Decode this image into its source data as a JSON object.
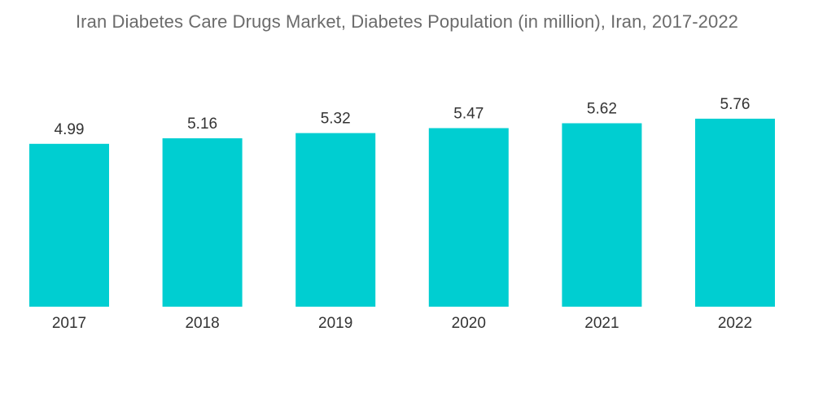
{
  "chart_data": {
    "type": "bar",
    "title": "Iran Diabetes Care Drugs Market, Diabetes Population (in million), Iran, 2017-2022",
    "categories": [
      "2017",
      "2018",
      "2019",
      "2020",
      "2021",
      "2022"
    ],
    "values": [
      4.99,
      5.16,
      5.32,
      5.47,
      5.62,
      5.76
    ],
    "data_labels": [
      "4.99",
      "5.16",
      "5.32",
      "5.47",
      "5.62",
      "5.76"
    ],
    "xlabel": "",
    "ylabel": "",
    "ylim": [
      0,
      6.0
    ],
    "grid": false,
    "legend": "none",
    "colors": {
      "bar": "#00ced1"
    }
  }
}
